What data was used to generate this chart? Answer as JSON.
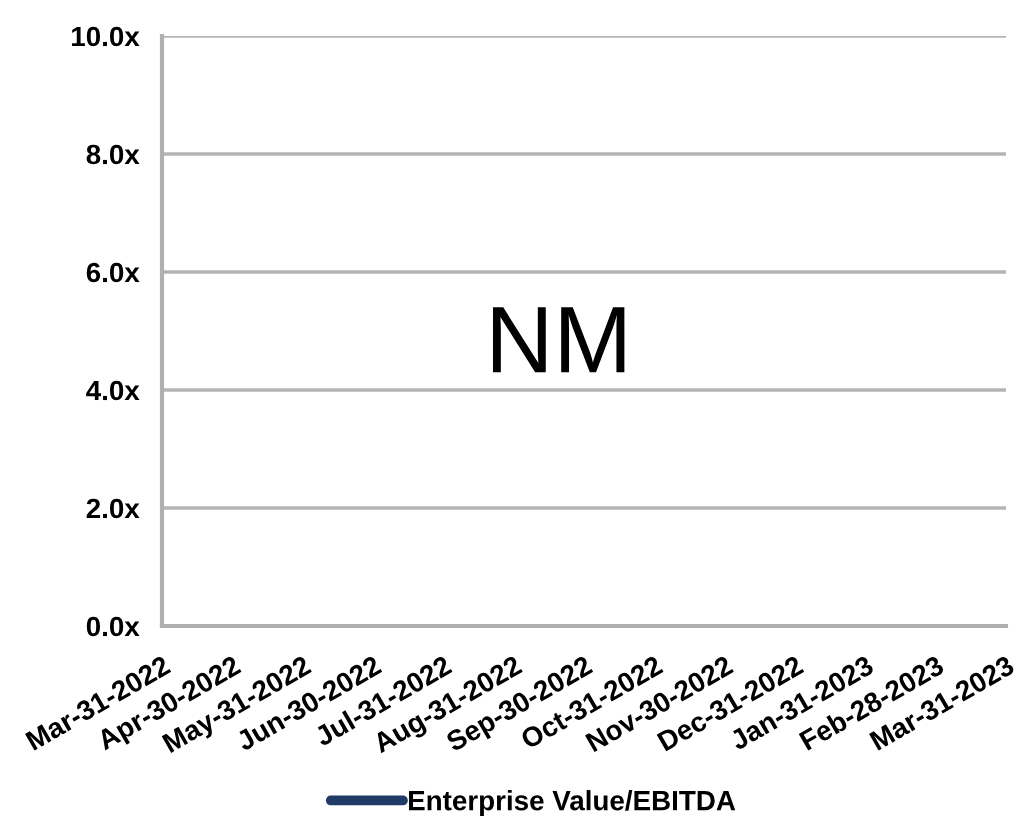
{
  "chart_data": {
    "type": "line",
    "categories": [
      "Mar-31-2022",
      "Apr-30-2022",
      "May-31-2022",
      "Jun-30-2022",
      "Jul-31-2022",
      "Aug-31-2022",
      "Sep-30-2022",
      "Oct-31-2022",
      "Nov-30-2022",
      "Dec-31-2022",
      "Jan-31-2023",
      "Feb-28-2023",
      "Mar-31-2023"
    ],
    "series": [
      {
        "name": "Enterprise Value/EBITDA",
        "color": "#1f3b66",
        "values": [
          null,
          null,
          null,
          null,
          null,
          null,
          null,
          null,
          null,
          null,
          null,
          null,
          null
        ]
      }
    ],
    "ylim": [
      0,
      10
    ],
    "yticks": [
      {
        "value": 0,
        "label": "0.0x"
      },
      {
        "value": 2,
        "label": "2.0x"
      },
      {
        "value": 4,
        "label": "4.0x"
      },
      {
        "value": 6,
        "label": "6.0x"
      },
      {
        "value": 8,
        "label": "8.0x"
      },
      {
        "value": 10,
        "label": "10.0x"
      }
    ],
    "grid": "y",
    "legend": "bottom",
    "line_style": "solid",
    "annotations": [
      "NM"
    ]
  }
}
